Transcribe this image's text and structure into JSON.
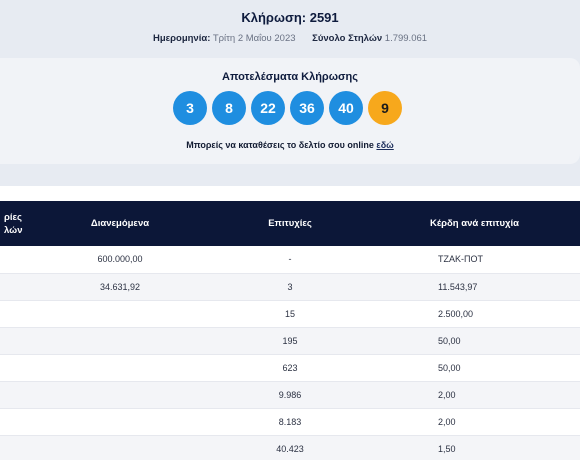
{
  "draw": {
    "title": "Κλήρωση: 2591",
    "date_label": "Ημερομηνία:",
    "date_value": "Τρίτη 2 Μαΐου 2023",
    "columns_label": "Σύνολο Στηλών",
    "columns_value": "1.799.061"
  },
  "results": {
    "title": "Αποτελέσματα Κλήρωσης",
    "numbers": [
      "3",
      "8",
      "22",
      "36",
      "40"
    ],
    "joker": "9",
    "online_text": "Μπορείς να καταθέσεις το δελτίο σου online",
    "online_link": "εδώ",
    "colors": {
      "ball": "#1f8ee0",
      "joker": "#f7a81c",
      "header": "#0c1738"
    }
  },
  "table": {
    "headers": [
      "ρίες\nλών",
      "Διανεμόμενα",
      "Επιτυχίες",
      "Κέρδη ανά επιτυχία"
    ],
    "rows": [
      [
        "",
        "600.000,00",
        "-",
        "ΤΖΑΚ-ΠΟΤ"
      ],
      [
        "",
        "34.631,92",
        "3",
        "11.543,97"
      ],
      [
        "",
        "",
        "15",
        "2.500,00"
      ],
      [
        "",
        "",
        "195",
        "50,00"
      ],
      [
        "",
        "",
        "623",
        "50,00"
      ],
      [
        "",
        "",
        "9.986",
        "2,00"
      ],
      [
        "",
        "",
        "8.183",
        "2,00"
      ],
      [
        "",
        "",
        "40.423",
        "1,50"
      ]
    ]
  }
}
